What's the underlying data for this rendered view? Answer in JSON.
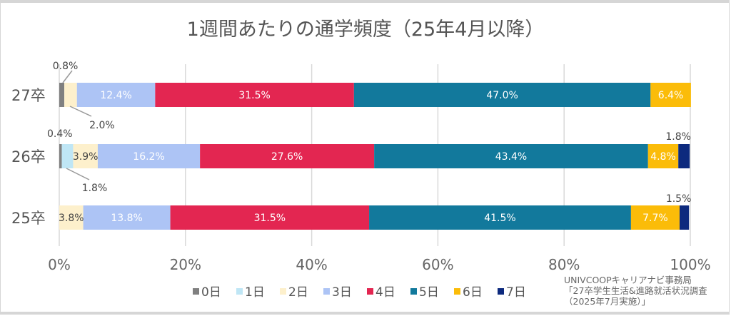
{
  "chart_data": {
    "type": "bar",
    "orientation": "horizontal",
    "stacked": "percent",
    "title": "1週間あたりの通学頻度（25年4月以降）",
    "categories": [
      "27卒",
      "26卒",
      "25卒"
    ],
    "xlim": [
      0,
      100
    ],
    "x_ticks": [
      "0%",
      "20%",
      "40%",
      "60%",
      "80%",
      "100%"
    ],
    "grid": "vertical",
    "legend_position": "bottom",
    "series": [
      {
        "name": "0日",
        "color": "#808080",
        "values": [
          0.8,
          0.4,
          0
        ]
      },
      {
        "name": "1日",
        "color": "#bfe6f5",
        "values": [
          0,
          1.8,
          0
        ]
      },
      {
        "name": "2日",
        "color": "#fdf0cc",
        "values": [
          2.0,
          3.9,
          3.8
        ]
      },
      {
        "name": "3日",
        "color": "#adc4f5",
        "values": [
          12.4,
          16.2,
          13.8
        ]
      },
      {
        "name": "4日",
        "color": "#e32651",
        "values": [
          31.5,
          27.6,
          31.5
        ]
      },
      {
        "name": "5日",
        "color": "#12799c",
        "values": [
          47.0,
          43.4,
          41.5
        ]
      },
      {
        "name": "6日",
        "color": "#fbbc09",
        "values": [
          6.4,
          4.8,
          7.7
        ]
      },
      {
        "name": "7日",
        "color": "#0d2a7e",
        "values": [
          0,
          1.8,
          1.5
        ]
      }
    ]
  },
  "source_note": "UNIVCOOPキャリアナビ事務局\n「27卒学生生活&進路就活状況調査\n（2025年7月実施）」"
}
